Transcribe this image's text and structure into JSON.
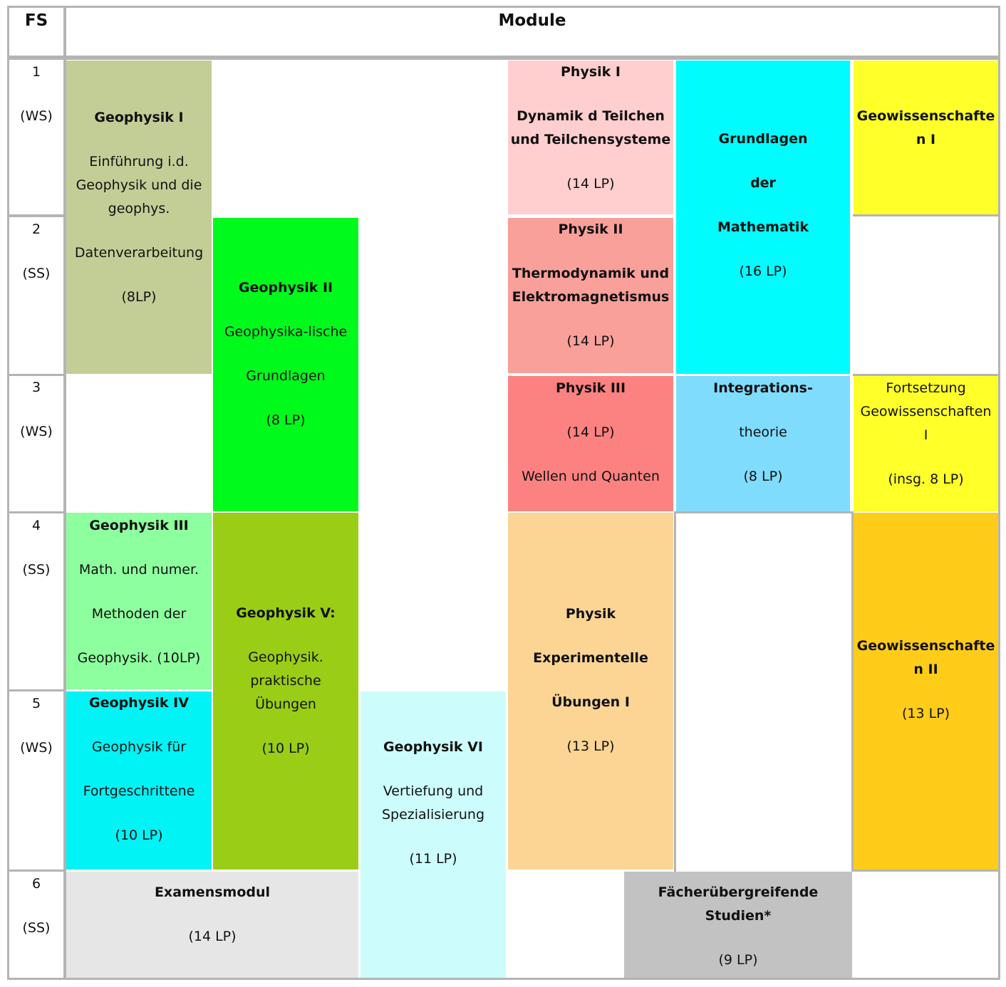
{
  "header": {
    "fs": "FS",
    "module": "Module"
  },
  "semesters": [
    {
      "num": "1",
      "term": "(WS)"
    },
    {
      "num": "2",
      "term": "(SS)"
    },
    {
      "num": "3",
      "term": "(WS)"
    },
    {
      "num": "4",
      "term": "(SS)"
    },
    {
      "num": "5",
      "term": "(WS)"
    },
    {
      "num": "6",
      "term": "(SS)"
    }
  ],
  "modules": {
    "geo1": {
      "title": "Geophysik I",
      "d1": "Einführung  i.d.",
      "d2": "Geophysik und die",
      "d3": "geophys.",
      "d4": "Datenverarbeitung",
      "lp": "(8LP)",
      "color": "#c3cd96"
    },
    "geo2": {
      "title": "Geophysik II",
      "d1": "Geophysika-lische",
      "d2": "Grundlagen",
      "lp": "(8 LP)",
      "color": "#00fa1c"
    },
    "geo3": {
      "title": "Geophysik III",
      "d1": "Math. und numer.",
      "d2": "Methoden der",
      "d3": "Geophysik. (10LP)",
      "color": "#8eff9e"
    },
    "geo4": {
      "title": "Geophysik IV",
      "d1": "Geophysik für",
      "d2": "Fortgeschrittene",
      "lp": "(10 LP)",
      "color": "#00f3f5"
    },
    "geo5": {
      "title": "Geophysik V:",
      "d1": "Geophysik.",
      "d2": "praktische",
      "d3": "Übungen",
      "lp": "(10 LP)",
      "color": "#9acd15"
    },
    "geo6": {
      "title": "Geophysik VI",
      "d1": "Vertiefung und",
      "d2": "Spezialisierung",
      "lp": "(11 LP)",
      "color": "#ccfcfc"
    },
    "exam": {
      "title": "Examensmodul",
      "lp": "(14 LP)",
      "color": "#e6e6e6"
    },
    "phys1": {
      "title": "Physik I",
      "t2": "Dynamik d Teilchen",
      "t3": "und Teilchensysteme",
      "lp": "(14 LP)",
      "color": "#ffcece"
    },
    "phys2": {
      "title": "Physik II",
      "t2": "Thermodynamik und",
      "t3": "Elektromagnetismus",
      "lp": "(14 LP)",
      "color": "#f9a09b"
    },
    "phys3": {
      "title": "Physik III",
      "lp": "(14 LP)",
      "d1": "Wellen und Quanten",
      "color": "#fc8281"
    },
    "physexp": {
      "title": "Physik",
      "t2": "Experimentelle",
      "t3": "Übungen I",
      "lp": "(13 LP)",
      "color": "#fcd594"
    },
    "math": {
      "t1": "Grundlagen",
      "t2": "der",
      "t3": "Mathematik",
      "lp": "(16 LP)",
      "color": "#00fcfc"
    },
    "integ": {
      "t1": "Integrations-",
      "t2": "theorie",
      "lp": "(8 LP)",
      "color": "#7fdcfc"
    },
    "geow1": {
      "t1": "Geowissenschafte",
      "t2": "n I",
      "color": "#ffff2a"
    },
    "geow1f": {
      "d1": "Fortsetzung",
      "d2": "Geowissenschaften",
      "d3": "I",
      "lp": "(insg. 8 LP)",
      "color": "#ffff2a"
    },
    "geow2": {
      "t1": "Geowissenschafte",
      "t2": "n II",
      "lp": "(13 LP)",
      "color": "#ffcc19"
    },
    "faecher": {
      "title": "Fächerübergreifende Studien*",
      "lp": "(9 LP)",
      "color": "#c2c2c2"
    }
  }
}
